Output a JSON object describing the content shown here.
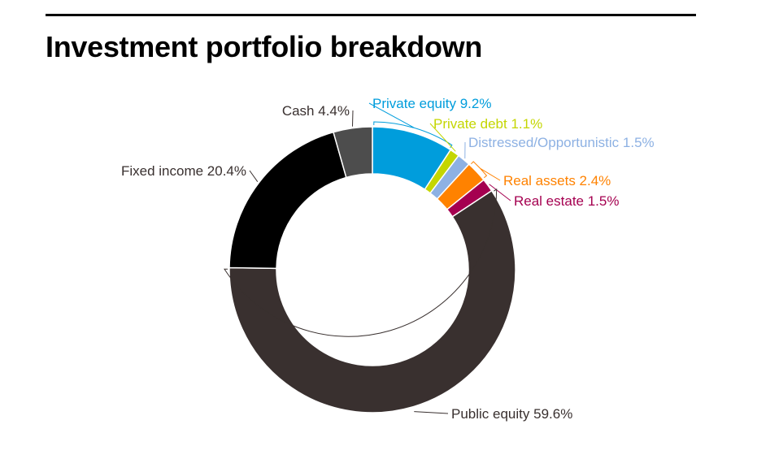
{
  "title": "Investment portfolio breakdown",
  "chart_data": {
    "type": "pie",
    "title": "Investment portfolio breakdown",
    "slices": [
      {
        "label": "Private equity",
        "value": 9.2,
        "value_label": "9.2%",
        "color": "#009ddc"
      },
      {
        "label": "Private debt",
        "value": 1.1,
        "value_label": "1.1%",
        "color": "#c4d600"
      },
      {
        "label": "Distressed/Opportunistic",
        "value": 1.5,
        "value_label": "1.5%",
        "color": "#8db1e3"
      },
      {
        "label": "Real assets",
        "value": 2.4,
        "value_label": "2.4%",
        "color": "#ff8200"
      },
      {
        "label": "Real estate",
        "value": 1.5,
        "value_label": "1.5%",
        "color": "#a50050"
      },
      {
        "label": "Public equity",
        "value": 59.6,
        "value_label": "59.6%",
        "color": "#39302f"
      },
      {
        "label": "Fixed income",
        "value": 20.4,
        "value_label": "20.4%",
        "color": "#000000"
      },
      {
        "label": "Cash",
        "value": 4.4,
        "value_label": "4.4%",
        "color": "#4d4d4d"
      }
    ],
    "label_colors": [
      "#009ddc",
      "#c4d600",
      "#8db1e3",
      "#ff8200",
      "#a50050",
      "#39302f",
      "#39302f",
      "#39302f"
    ],
    "donut": true,
    "legend": "none"
  }
}
